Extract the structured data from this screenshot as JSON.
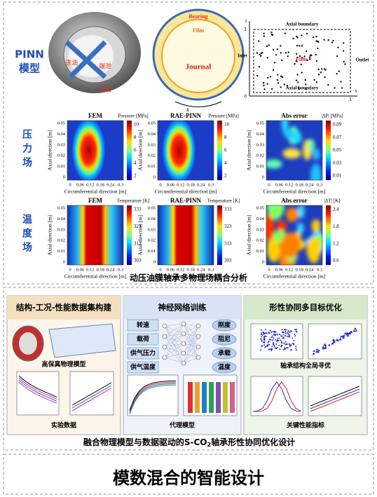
{
  "top": {
    "model_label": [
      "PINN",
      "模型"
    ],
    "photo_labels": [
      "进油",
      "端泄",
      "出油"
    ],
    "bearing_diagram": {
      "bearing": "Bearing",
      "film": "Film",
      "journal": "Journal",
      "direction": "x"
    },
    "domain": {
      "top": "Axial boundary",
      "bottom": "Axial boundary",
      "inlet": "Inlet",
      "outlet": "Outlet",
      "film": "Film",
      "z_axis": "z",
      "x_axis": "x",
      "z_one": "1",
      "origin": "0",
      "x_one": "1"
    },
    "rows": [
      {
        "label": "压力场",
        "ylabel": "Axial direction [m]",
        "xlabel": "Circumferential direction [m]",
        "yticks": [
          "0.05",
          "0.04",
          "0.03",
          "0.02",
          "0.01",
          "0"
        ],
        "xticks": [
          "0",
          "0.06",
          "0.12",
          "0.18",
          "0.24",
          "0.3"
        ],
        "panels": [
          {
            "title": "FEM",
            "cbar_title": "Pressure [MPa]",
            "cbar_ticks": [
              "10",
              "8",
              "6",
              "4",
              "2"
            ]
          },
          {
            "title": "RAE-PINN",
            "cbar_title": "Pressure [MPa]",
            "cbar_ticks": [
              "10",
              "8",
              "6",
              "4",
              "2"
            ]
          },
          {
            "title": "Abs error",
            "cbar_title": "|ΔP| [MPa]",
            "cbar_ticks": [
              "0.09",
              "0.07",
              "0.05",
              "0.03",
              "0.01"
            ]
          }
        ]
      },
      {
        "label": "温度场",
        "ylabel": "Axial direction [m]",
        "xlabel": "Circumferential direction [m]",
        "yticks": [
          "0.05",
          "0.04",
          "0.03",
          "0.02",
          "0.01",
          "0"
        ],
        "xticks": [
          "0",
          "0.06",
          "0.12",
          "0.18",
          "0.24",
          "0.3"
        ],
        "panels": [
          {
            "title": "FEM",
            "cbar_title": "Temperature [K]",
            "cbar_ticks": [
              "333",
              "323",
              "313",
              "303"
            ]
          },
          {
            "title": "RAE-PINN",
            "cbar_title": "Temperature [K]",
            "cbar_ticks": [
              "333",
              "323",
              "313",
              "303"
            ]
          },
          {
            "title": "Abs error",
            "cbar_title": "|ΔT| [K]",
            "cbar_ticks": [
              "2.4",
              "1.8",
              "1.2",
              "0.6"
            ]
          }
        ]
      }
    ],
    "caption": "动压油膜轴承多物理场耦合分析"
  },
  "bottom": {
    "panels": [
      {
        "title": "结构-工况-性能数据集构建",
        "labels": [
          "高保真物理模型",
          "实验数据"
        ]
      },
      {
        "title": "神经网络训练",
        "inputs": [
          "转速",
          "载荷",
          "供气压力",
          "供气温度"
        ],
        "outputs": [
          "刚度",
          "阻尼",
          "承载",
          "温度"
        ],
        "labels": [
          "代理模型"
        ]
      },
      {
        "title": "形性协同多目标优化",
        "labels": [
          "轴承结构全局寻优",
          "关键性能指标"
        ]
      }
    ],
    "caption": [
      "融合物理模型与数据驱动的S-CO",
      "2",
      "轴承形性协同优化设计"
    ]
  },
  "footer": "模数混合的智能设计"
}
